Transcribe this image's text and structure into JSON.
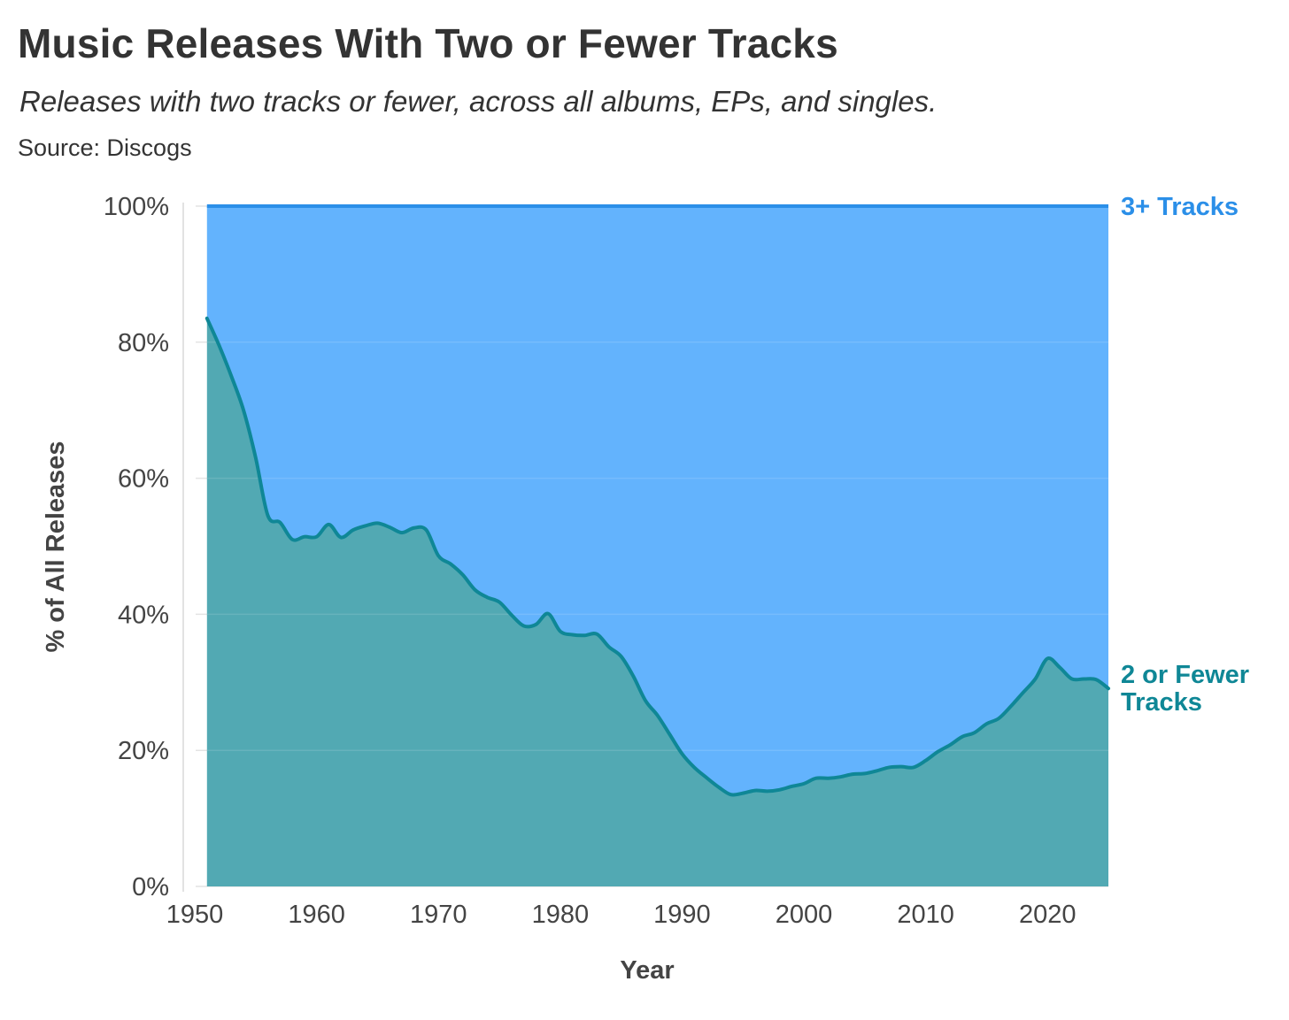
{
  "chart_data": {
    "type": "area",
    "title": "Music Releases With Two or Fewer Tracks",
    "subtitle": "Releases with two tracks or fewer, across all albums, EPs, and singles.",
    "source": "Source: Discogs",
    "xlabel": "Year",
    "ylabel": "% of All Releases",
    "xlim": [
      1951,
      2025
    ],
    "ylim": [
      0,
      100
    ],
    "x_ticks": [
      1950,
      1960,
      1970,
      1980,
      1990,
      2000,
      2010,
      2020
    ],
    "x_tick_labels": [
      "1950",
      "1960",
      "1970",
      "1980",
      "1990",
      "2000",
      "2010",
      "2020"
    ],
    "y_ticks": [
      0,
      20,
      40,
      60,
      80,
      100
    ],
    "y_tick_labels": [
      "0%",
      "20%",
      "40%",
      "60%",
      "80%",
      "100%"
    ],
    "stacked": true,
    "series": [
      {
        "name": "2 or Fewer Tracks",
        "label_lines": [
          "2 or Fewer",
          "Tracks"
        ],
        "fill_color": "#52a9b3",
        "line_color": "#0f8796",
        "x": [
          1951,
          1952,
          1953,
          1954,
          1955,
          1956,
          1957,
          1958,
          1959,
          1960,
          1961,
          1962,
          1963,
          1964,
          1965,
          1966,
          1967,
          1968,
          1969,
          1970,
          1971,
          1972,
          1973,
          1974,
          1975,
          1976,
          1977,
          1978,
          1979,
          1980,
          1981,
          1982,
          1983,
          1984,
          1985,
          1986,
          1987,
          1988,
          1989,
          1990,
          1991,
          1992,
          1993,
          1994,
          1995,
          1996,
          1997,
          1998,
          1999,
          2000,
          2001,
          2002,
          2003,
          2004,
          2005,
          2006,
          2007,
          2008,
          2009,
          2010,
          2011,
          2012,
          2013,
          2014,
          2015,
          2016,
          2017,
          2018,
          2019,
          2020,
          2021,
          2022,
          2023,
          2024,
          2025
        ],
        "values": [
          83.5,
          79.5,
          75,
          70,
          63,
          54.5,
          53.5,
          51,
          51.4,
          51.4,
          53.2,
          51.3,
          52.4,
          53,
          53.4,
          52.8,
          52,
          52.7,
          52.4,
          48.6,
          47.4,
          45.8,
          43.6,
          42.5,
          41.8,
          39.9,
          38.3,
          38.5,
          40.1,
          37.5,
          37,
          36.9,
          37.1,
          35.2,
          33.8,
          30.9,
          27.3,
          25.1,
          22.3,
          19.5,
          17.5,
          16,
          14.6,
          13.5,
          13.7,
          14.1,
          14,
          14.2,
          14.7,
          15.1,
          15.9,
          15.9,
          16.1,
          16.5,
          16.6,
          17,
          17.5,
          17.6,
          17.5,
          18.5,
          19.8,
          20.8,
          22,
          22.6,
          23.9,
          24.7,
          26.5,
          28.5,
          30.5,
          33.5,
          32.2,
          30.5,
          30.5,
          30.4,
          29.1
        ]
      },
      {
        "name": "3+ Tracks",
        "label_lines": [
          "3+ Tracks"
        ],
        "fill_color": "#63b3fd",
        "line_color": "#2b8fe8"
      }
    ]
  }
}
